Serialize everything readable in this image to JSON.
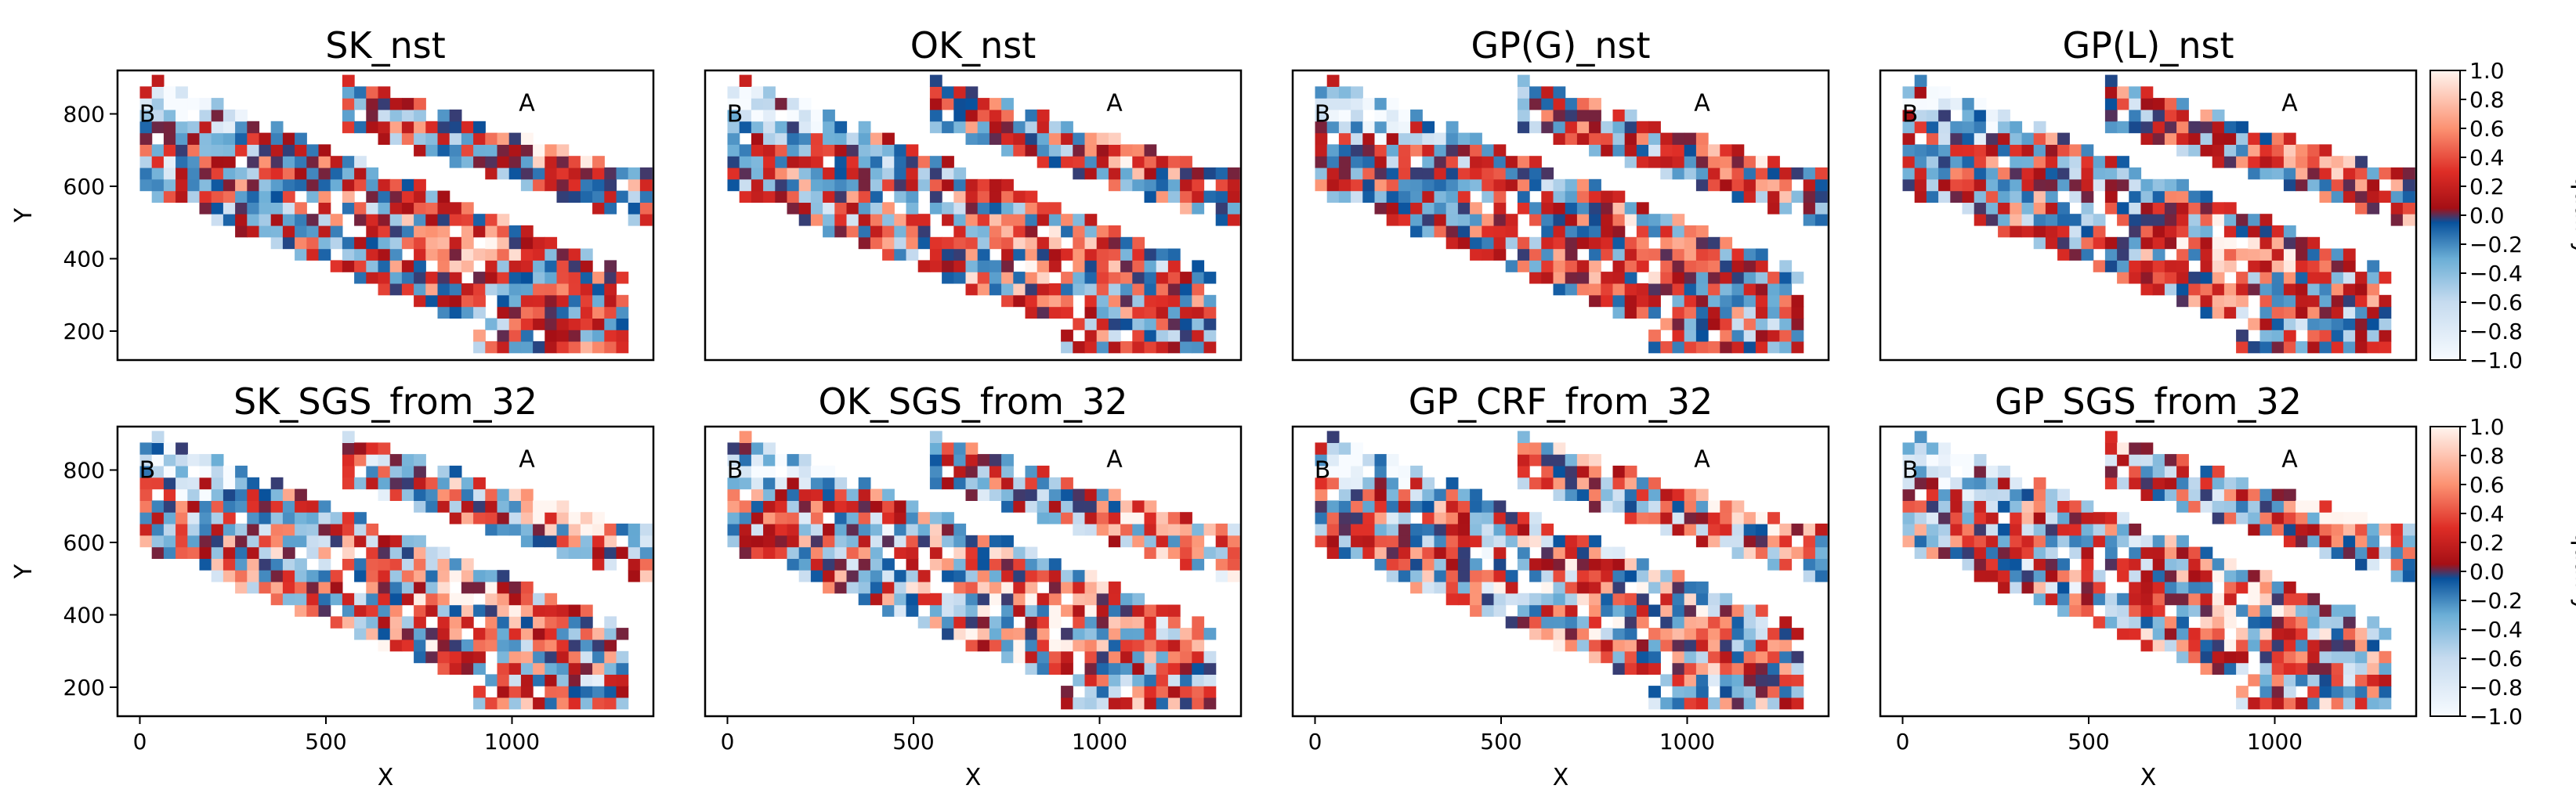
{
  "colors": {
    "colormap": "RdBu_r",
    "cmap_low": "#f7fbff",
    "cmap_mid_low": "#08519c",
    "cmap_mid_high": "#a50f15",
    "cmap_high": "#fff5f0"
  },
  "chart_data": {
    "type": "heatmap",
    "panels": [
      {
        "title": "SK_nst",
        "row": 0,
        "col": 0
      },
      {
        "title": "OK_nst",
        "row": 0,
        "col": 1
      },
      {
        "title": "GP(G)_nst",
        "row": 0,
        "col": 2
      },
      {
        "title": "GP(L)_nst",
        "row": 0,
        "col": 3
      },
      {
        "title": "SK_SGS_from_32",
        "row": 1,
        "col": 0
      },
      {
        "title": "OK_SGS_from_32",
        "row": 1,
        "col": 1
      },
      {
        "title": "GP_CRF_from_32",
        "row": 1,
        "col": 2
      },
      {
        "title": "GP_SGS_from_32",
        "row": 1,
        "col": 3
      }
    ],
    "xlabel": "X",
    "ylabel": "Y",
    "xlim": [
      -60,
      1380
    ],
    "ylim": [
      120,
      920
    ],
    "xticks": [
      0,
      500,
      1000
    ],
    "yticks": [
      200,
      400,
      600,
      800
    ],
    "cell_size": 32,
    "markers": [
      {
        "text": "A",
        "x": 1040,
        "y": 830
      },
      {
        "text": "B",
        "x": 20,
        "y": 800
      }
    ],
    "colorbar": {
      "label": "quality",
      "ticks": [
        "1.0",
        "0.8",
        "0.6",
        "0.4",
        "0.2",
        "0.0",
        "−0.2",
        "−0.4",
        "−0.6",
        "−0.8",
        "−1.0"
      ],
      "range": [
        -1.0,
        1.0
      ]
    },
    "grid": false,
    "legend": "none"
  }
}
